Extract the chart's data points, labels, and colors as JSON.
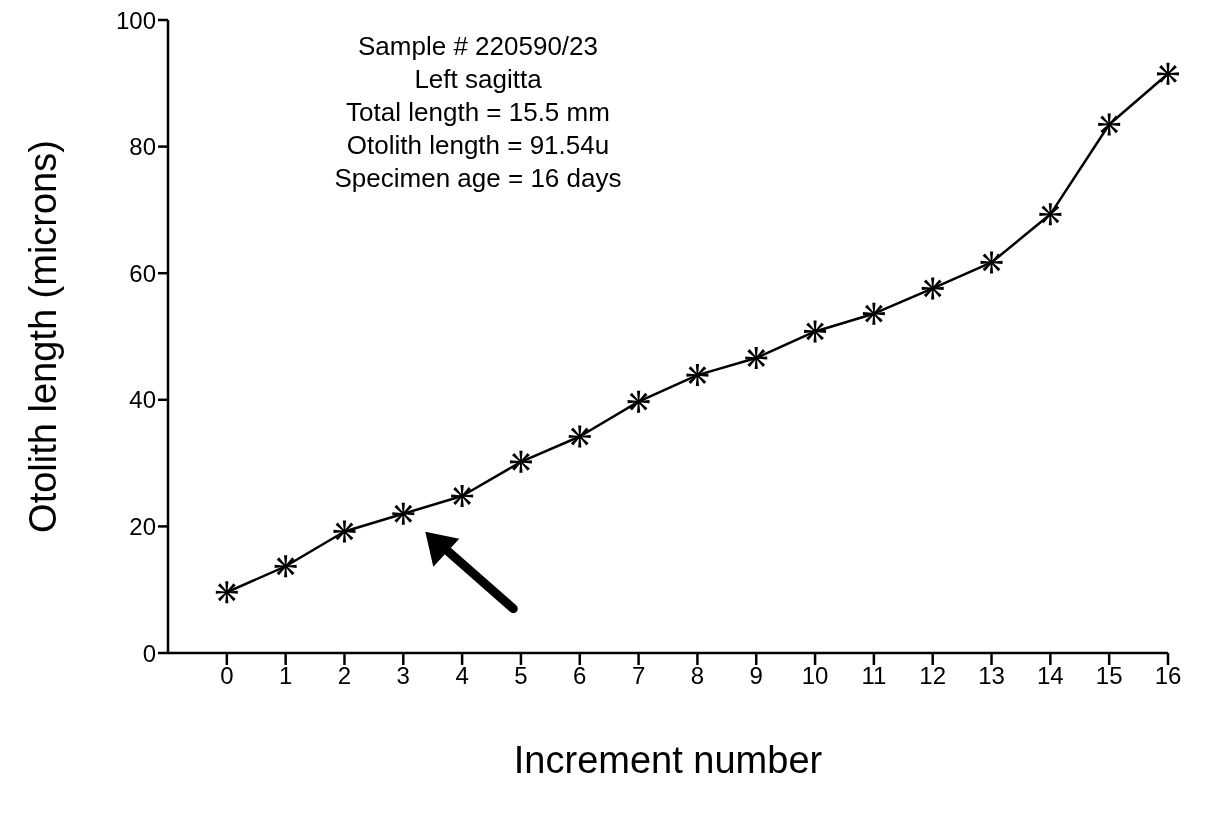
{
  "chart_data": {
    "type": "line",
    "xlabel": "Increment number",
    "ylabel": "Otolith length (microns)",
    "annotations": [
      "Sample # 220590/23",
      "Left sagitta",
      "Total length = 15.5 mm",
      "Otolith length = 91.54u",
      "Specimen age = 16 days"
    ],
    "x": [
      0,
      1,
      2,
      3,
      4,
      5,
      6,
      7,
      8,
      9,
      10,
      11,
      12,
      13,
      14,
      15,
      16
    ],
    "series": [
      {
        "color": "#000000",
        "values": [
          9.6,
          13.7,
          19.2,
          22,
          24.8,
          30.2,
          34.2,
          39.7,
          43.9,
          46.6,
          50.8,
          53.6,
          57.6,
          61.7,
          69.3,
          83.5,
          91.5
        ]
      }
    ],
    "xlim": [
      -1,
      16
    ],
    "xticks": [
      0,
      1,
      2,
      3,
      4,
      5,
      6,
      7,
      8,
      9,
      10,
      11,
      12,
      13,
      14,
      15,
      16
    ],
    "ylim": [
      0,
      100
    ],
    "yticks": [
      0,
      20,
      40,
      60,
      80,
      100
    ],
    "marker": "cross",
    "line_style": "solid"
  }
}
